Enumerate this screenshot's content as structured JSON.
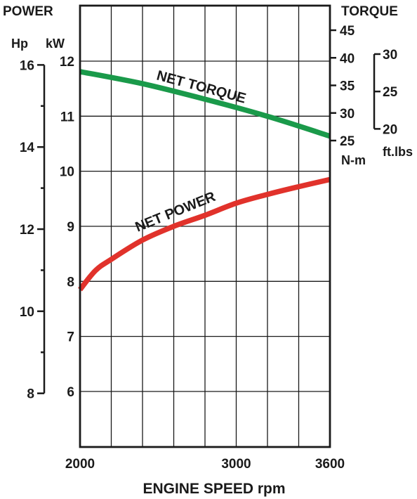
{
  "chart_data": {
    "type": "line",
    "title_left": "POWER",
    "title_right": "TORQUE",
    "xlabel": "ENGINE SPEED rpm",
    "xlim": [
      2000,
      3600
    ],
    "x_tick_labels": [
      "2000",
      "3000",
      "3600"
    ],
    "x_tick_values": [
      2000,
      3000,
      3600
    ],
    "x_grid_values": [
      2000,
      2200,
      2400,
      2600,
      2800,
      3000,
      3200,
      3400,
      3600
    ],
    "axes": {
      "kw": {
        "unit": "kW",
        "range": [
          5,
          12.6
        ],
        "ticks": [
          6,
          7,
          8,
          9,
          10,
          11,
          12
        ],
        "tick_labels": [
          "6",
          "7",
          "8",
          "9",
          "10",
          "11",
          "12"
        ]
      },
      "hp": {
        "unit": "Hp",
        "ticks": [
          8,
          10,
          12,
          14,
          16
        ],
        "tick_labels": [
          "8",
          "10",
          "12",
          "14",
          "16"
        ],
        "minor_ticks": [
          9,
          11,
          13,
          15
        ]
      },
      "nm": {
        "unit": "N-m",
        "range": [
          25,
          45
        ],
        "ticks": [
          25,
          30,
          35,
          40,
          45
        ],
        "tick_labels": [
          "25",
          "30",
          "35",
          "40",
          "45"
        ]
      },
      "ftlbs": {
        "unit": "ft.lbs",
        "range": [
          20,
          30
        ],
        "ticks": [
          20,
          25,
          30
        ],
        "tick_labels": [
          "20",
          "25",
          "30"
        ]
      }
    },
    "series": [
      {
        "name": "NET TORQUE",
        "axis": "nm",
        "color": "#1a9a4a",
        "x": [
          2000,
          2400,
          2800,
          3200,
          3600
        ],
        "values": [
          37.5,
          35.3,
          32.5,
          29.4,
          25.8
        ]
      },
      {
        "name": "NET POWER",
        "axis": "kw",
        "color": "#e1322b",
        "x": [
          2000,
          2100,
          2200,
          2400,
          2600,
          2800,
          3000,
          3200,
          3400,
          3600
        ],
        "values": [
          7.85,
          8.2,
          8.4,
          8.75,
          9.0,
          9.2,
          9.42,
          9.58,
          9.72,
          9.85
        ]
      }
    ]
  }
}
